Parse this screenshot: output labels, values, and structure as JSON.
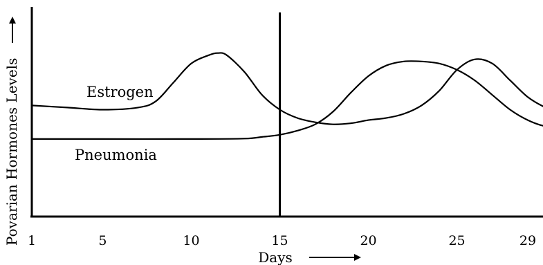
{
  "chart_data": {
    "type": "line",
    "xlabel": "Days",
    "ylabel": "Povarian Hormones Levels",
    "xlim": [
      1,
      32
    ],
    "ylim": [
      0,
      10
    ],
    "x_ticks": [
      1,
      5,
      10,
      15,
      20,
      25,
      29
    ],
    "x_tick_labels": [
      "1",
      "5",
      "10",
      "15",
      "20",
      "25",
      "29"
    ],
    "grid": false,
    "legend": "none",
    "vertical_marker_x": 15,
    "series": [
      {
        "name": "Estrogen",
        "x": [
          1,
          3,
          5,
          7,
          8,
          9,
          10,
          11,
          11.5,
          12,
          13,
          14,
          15,
          16,
          17,
          18,
          19,
          20,
          21,
          22,
          23,
          24,
          25,
          26,
          27,
          28,
          29,
          30,
          31
        ],
        "y": [
          5.3,
          5.2,
          5.1,
          5.2,
          5.5,
          6.4,
          7.3,
          7.7,
          7.8,
          7.7,
          6.9,
          5.8,
          5.1,
          4.7,
          4.5,
          4.4,
          4.45,
          4.6,
          4.7,
          4.9,
          5.3,
          6.0,
          7.0,
          7.5,
          7.3,
          6.5,
          5.7,
          5.2,
          4.9
        ]
      },
      {
        "name": "Pneumonia",
        "x": [
          1,
          5,
          10,
          13,
          14,
          15,
          16,
          17,
          18,
          19,
          20,
          21,
          22,
          23,
          24,
          25,
          26,
          27,
          28,
          29,
          30,
          31
        ],
        "y": [
          3.7,
          3.7,
          3.7,
          3.72,
          3.8,
          3.9,
          4.1,
          4.4,
          5.0,
          5.9,
          6.7,
          7.2,
          7.4,
          7.4,
          7.3,
          7.0,
          6.5,
          5.8,
          5.1,
          4.6,
          4.3,
          4.2
        ]
      }
    ],
    "series_labels": [
      "Estrogen",
      "Pneumonia"
    ]
  }
}
